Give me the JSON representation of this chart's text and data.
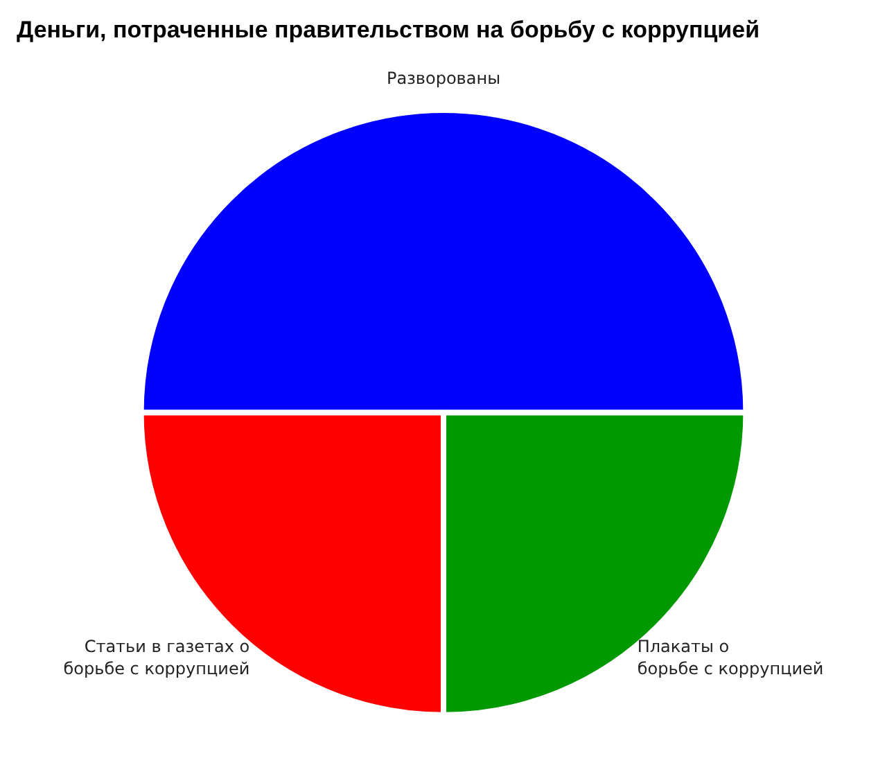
{
  "chart_data": {
    "type": "pie",
    "title": "Деньги, потраченные правительством на борьбу с коррупцией",
    "categories": [
      "Разворованы",
      "Плакаты о\nборьбе с коррупцией",
      "Статьи в газетах о\nборьбе с коррупцией"
    ],
    "values": [
      50,
      25,
      25
    ],
    "colors": [
      "#0000ff",
      "#009900",
      "#ff0000"
    ],
    "legend": false
  }
}
